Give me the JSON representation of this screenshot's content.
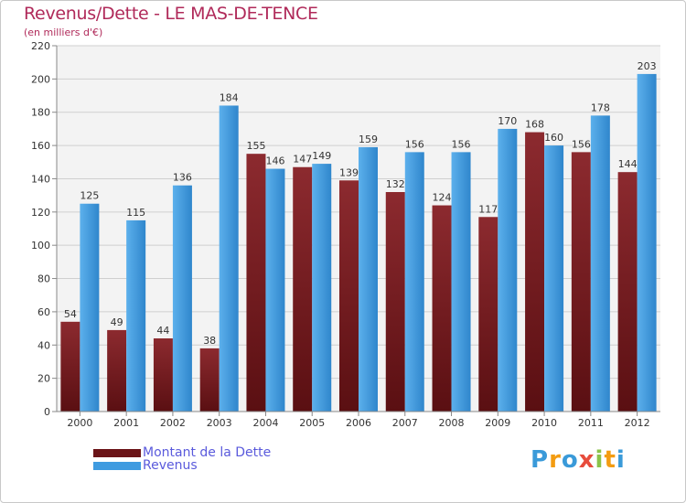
{
  "chart_data": {
    "type": "bar",
    "title": "Revenus/Dette - LE MAS-DE-TENCE",
    "subtitle": "(en milliers d'€)",
    "categories": [
      "2000",
      "2001",
      "2002",
      "2003",
      "2004",
      "2005",
      "2006",
      "2007",
      "2008",
      "2009",
      "2010",
      "2011",
      "2012"
    ],
    "series": [
      {
        "name": "Montant de la Dette",
        "values": [
          54,
          49,
          44,
          38,
          155,
          147,
          139,
          132,
          124,
          117,
          168,
          156,
          144
        ],
        "color": "#7a1f23"
      },
      {
        "name": "Revenus",
        "values": [
          125,
          115,
          136,
          184,
          146,
          149,
          159,
          156,
          156,
          170,
          160,
          178,
          203
        ],
        "color": "#3f9be0"
      }
    ],
    "ylim": [
      0,
      220
    ],
    "yticks": [
      0,
      20,
      40,
      60,
      80,
      100,
      120,
      140,
      160,
      180,
      200,
      220
    ],
    "grid": true,
    "legend_position": "bottom-left"
  },
  "logo": {
    "letters": [
      "P",
      "r",
      "o",
      "x",
      "i",
      "t",
      "i"
    ],
    "colors": [
      "#3a9ad9",
      "#f39c12",
      "#3a9ad9",
      "#e74c3c",
      "#8bc34a",
      "#f39c12",
      "#3a9ad9"
    ]
  }
}
